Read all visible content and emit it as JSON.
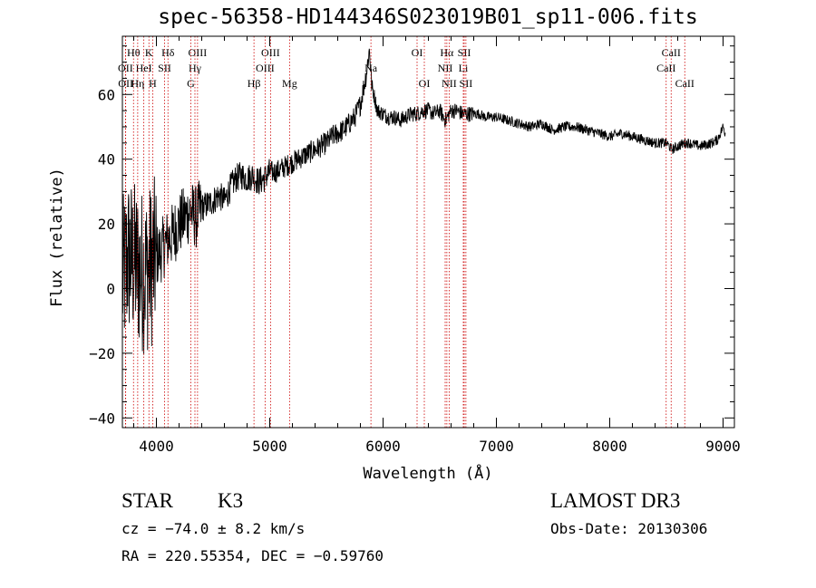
{
  "chart_data": {
    "type": "line",
    "title": "spec-56358-HD144346S023019B01_sp11-006.fits",
    "xlabel": "Wavelength (Å)",
    "ylabel": "Flux (relative)",
    "xlim": [
      3700,
      9100
    ],
    "ylim": [
      -43,
      78
    ],
    "xticks": [
      4000,
      5000,
      6000,
      7000,
      8000,
      9000
    ],
    "xtick_labels": [
      "4000",
      "5000",
      "6000",
      "7000",
      "8000",
      "9000"
    ],
    "yticks": [
      -40,
      -20,
      0,
      20,
      40,
      60
    ],
    "ytick_labels": [
      "−40",
      "−20",
      "0",
      "20",
      "40",
      "60"
    ],
    "grid": false,
    "series_color": "#000000",
    "line_color": "#cc0000",
    "spectrum_anchors": [
      [
        3700,
        2
      ],
      [
        3750,
        10
      ],
      [
        3800,
        8
      ],
      [
        3850,
        6
      ],
      [
        3900,
        5
      ],
      [
        3950,
        7
      ],
      [
        4000,
        10
      ],
      [
        4050,
        12
      ],
      [
        4100,
        15
      ],
      [
        4150,
        17
      ],
      [
        4200,
        20
      ],
      [
        4250,
        22
      ],
      [
        4300,
        24
      ],
      [
        4350,
        22
      ],
      [
        4400,
        25
      ],
      [
        4450,
        26
      ],
      [
        4500,
        27
      ],
      [
        4550,
        29
      ],
      [
        4600,
        27
      ],
      [
        4650,
        31
      ],
      [
        4700,
        34
      ],
      [
        4750,
        35
      ],
      [
        4800,
        34
      ],
      [
        4850,
        35
      ],
      [
        4900,
        33
      ],
      [
        4950,
        34
      ],
      [
        5000,
        36
      ],
      [
        5050,
        36
      ],
      [
        5100,
        37
      ],
      [
        5150,
        38
      ],
      [
        5200,
        39
      ],
      [
        5250,
        40
      ],
      [
        5300,
        41
      ],
      [
        5350,
        42
      ],
      [
        5400,
        43
      ],
      [
        5450,
        44
      ],
      [
        5500,
        45
      ],
      [
        5550,
        47
      ],
      [
        5600,
        48
      ],
      [
        5650,
        49
      ],
      [
        5700,
        51
      ],
      [
        5750,
        53
      ],
      [
        5800,
        57
      ],
      [
        5850,
        66
      ],
      [
        5880,
        74
      ],
      [
        5900,
        63
      ],
      [
        5950,
        55
      ],
      [
        6000,
        54
      ],
      [
        6050,
        53
      ],
      [
        6100,
        53
      ],
      [
        6150,
        52
      ],
      [
        6200,
        53
      ],
      [
        6250,
        54
      ],
      [
        6300,
        54
      ],
      [
        6350,
        55
      ],
      [
        6400,
        55
      ],
      [
        6450,
        54
      ],
      [
        6500,
        55
      ],
      [
        6550,
        52
      ],
      [
        6600,
        55
      ],
      [
        6650,
        55
      ],
      [
        6700,
        54
      ],
      [
        6750,
        54
      ],
      [
        6800,
        54
      ],
      [
        6850,
        54
      ],
      [
        6900,
        53
      ],
      [
        7000,
        53
      ],
      [
        7100,
        52
      ],
      [
        7200,
        51
      ],
      [
        7300,
        50
      ],
      [
        7400,
        51
      ],
      [
        7500,
        49
      ],
      [
        7600,
        50
      ],
      [
        7700,
        50
      ],
      [
        7800,
        49
      ],
      [
        7900,
        48
      ],
      [
        8000,
        47
      ],
      [
        8100,
        48
      ],
      [
        8200,
        47
      ],
      [
        8300,
        46
      ],
      [
        8400,
        45
      ],
      [
        8500,
        45
      ],
      [
        8550,
        43
      ],
      [
        8600,
        44
      ],
      [
        8660,
        45
      ],
      [
        8700,
        45
      ],
      [
        8800,
        44
      ],
      [
        8900,
        45
      ],
      [
        8950,
        46
      ],
      [
        9000,
        50
      ],
      [
        9020,
        48
      ]
    ],
    "lines": [
      {
        "label": "Hθ",
        "x": 3798,
        "row": 0
      },
      {
        "label": "K",
        "x": 3934,
        "row": 0
      },
      {
        "label": "Hδ",
        "x": 4102,
        "row": 0
      },
      {
        "label": "OIII",
        "x": 4363,
        "row": 0
      },
      {
        "label": "OIII",
        "x": 5007,
        "row": 0
      },
      {
        "label": "OI",
        "x": 6300,
        "row": 0
      },
      {
        "label": "Hα",
        "x": 6563,
        "row": 0
      },
      {
        "label": "SII",
        "x": 6716,
        "row": 0
      },
      {
        "label": "CaII",
        "x": 8542,
        "row": 0
      },
      {
        "label": "OII",
        "x": 3727,
        "row": 1
      },
      {
        "label": "HeI",
        "x": 3889,
        "row": 1
      },
      {
        "label": "SII",
        "x": 4072,
        "row": 1
      },
      {
        "label": "Hγ",
        "x": 4340,
        "row": 1
      },
      {
        "label": "OIII",
        "x": 4959,
        "row": 1
      },
      {
        "label": "Na",
        "x": 5893,
        "row": 1
      },
      {
        "label": "NII",
        "x": 6548,
        "row": 1
      },
      {
        "label": "Li",
        "x": 6708,
        "row": 1
      },
      {
        "label": "CaII",
        "x": 8498,
        "row": 1
      },
      {
        "label": "OII",
        "x": 3729,
        "row": 2
      },
      {
        "label": "Hη",
        "x": 3835,
        "row": 2
      },
      {
        "label": "H",
        "x": 3968,
        "row": 2
      },
      {
        "label": "G",
        "x": 4304,
        "row": 2
      },
      {
        "label": "Hβ",
        "x": 4861,
        "row": 2
      },
      {
        "label": "Mg",
        "x": 5175,
        "row": 2
      },
      {
        "label": "OI",
        "x": 6364,
        "row": 2
      },
      {
        "label": "NII",
        "x": 6583,
        "row": 2
      },
      {
        "label": "SII",
        "x": 6731,
        "row": 2
      },
      {
        "label": "CaII",
        "x": 8662,
        "row": 2
      }
    ]
  },
  "info": {
    "object_class": "STAR",
    "subclass": "K3",
    "survey": "LAMOST DR3",
    "redshift_text": "cz = −74.0 ± 8.2 km/s",
    "obs_date_text": "Obs-Date: 20130306",
    "coords_text": "RA = 220.55354, DEC =  −0.59760"
  }
}
